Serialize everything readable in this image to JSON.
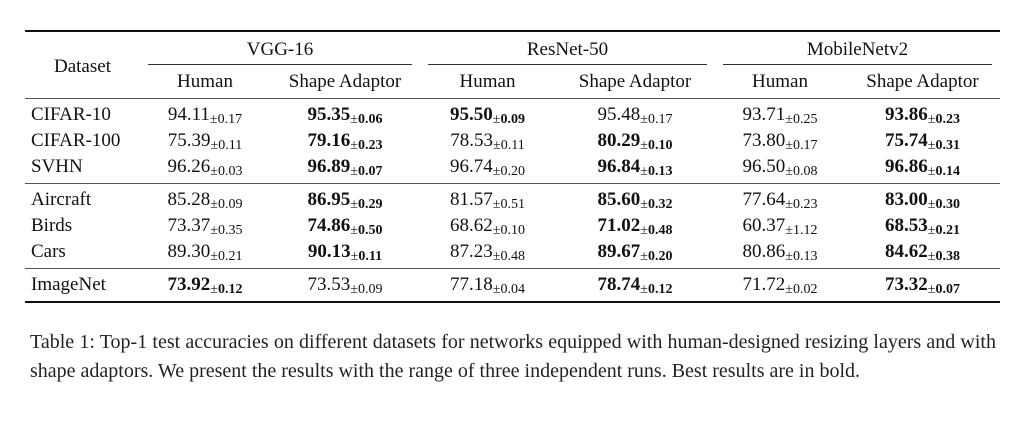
{
  "table": {
    "dataset_header": "Dataset",
    "groups": [
      "VGG-16",
      "ResNet-50",
      "MobileNetv2"
    ],
    "subheaders": [
      "Human",
      "Shape Adaptor",
      "Human",
      "Shape Adaptor",
      "Human",
      "Shape Adaptor"
    ],
    "pm_symbol": "±",
    "sections": [
      [
        {
          "dataset": "CIFAR-10",
          "cells": [
            {
              "v": "94.11",
              "pm": "0.17",
              "bold": false
            },
            {
              "v": "95.35",
              "pm": "0.06",
              "bold": true
            },
            {
              "v": "95.50",
              "pm": "0.09",
              "bold": true
            },
            {
              "v": "95.48",
              "pm": "0.17",
              "bold": false
            },
            {
              "v": "93.71",
              "pm": "0.25",
              "bold": false
            },
            {
              "v": "93.86",
              "pm": "0.23",
              "bold": true
            }
          ]
        },
        {
          "dataset": "CIFAR-100",
          "cells": [
            {
              "v": "75.39",
              "pm": "0.11",
              "bold": false
            },
            {
              "v": "79.16",
              "pm": "0.23",
              "bold": true
            },
            {
              "v": "78.53",
              "pm": "0.11",
              "bold": false
            },
            {
              "v": "80.29",
              "pm": "0.10",
              "bold": true
            },
            {
              "v": "73.80",
              "pm": "0.17",
              "bold": false
            },
            {
              "v": "75.74",
              "pm": "0.31",
              "bold": true
            }
          ]
        },
        {
          "dataset": "SVHN",
          "cells": [
            {
              "v": "96.26",
              "pm": "0.03",
              "bold": false
            },
            {
              "v": "96.89",
              "pm": "0.07",
              "bold": true
            },
            {
              "v": "96.74",
              "pm": "0.20",
              "bold": false
            },
            {
              "v": "96.84",
              "pm": "0.13",
              "bold": true
            },
            {
              "v": "96.50",
              "pm": "0.08",
              "bold": false
            },
            {
              "v": "96.86",
              "pm": "0.14",
              "bold": true
            }
          ]
        }
      ],
      [
        {
          "dataset": "Aircraft",
          "cells": [
            {
              "v": "85.28",
              "pm": "0.09",
              "bold": false
            },
            {
              "v": "86.95",
              "pm": "0.29",
              "bold": true
            },
            {
              "v": "81.57",
              "pm": "0.51",
              "bold": false
            },
            {
              "v": "85.60",
              "pm": "0.32",
              "bold": true
            },
            {
              "v": "77.64",
              "pm": "0.23",
              "bold": false
            },
            {
              "v": "83.00",
              "pm": "0.30",
              "bold": true
            }
          ]
        },
        {
          "dataset": "Birds",
          "cells": [
            {
              "v": "73.37",
              "pm": "0.35",
              "bold": false
            },
            {
              "v": "74.86",
              "pm": "0.50",
              "bold": true
            },
            {
              "v": "68.62",
              "pm": "0.10",
              "bold": false
            },
            {
              "v": "71.02",
              "pm": "0.48",
              "bold": true
            },
            {
              "v": "60.37",
              "pm": "1.12",
              "bold": false
            },
            {
              "v": "68.53",
              "pm": "0.21",
              "bold": true
            }
          ]
        },
        {
          "dataset": "Cars",
          "cells": [
            {
              "v": "89.30",
              "pm": "0.21",
              "bold": false
            },
            {
              "v": "90.13",
              "pm": "0.11",
              "bold": true
            },
            {
              "v": "87.23",
              "pm": "0.48",
              "bold": false
            },
            {
              "v": "89.67",
              "pm": "0.20",
              "bold": true
            },
            {
              "v": "80.86",
              "pm": "0.13",
              "bold": false
            },
            {
              "v": "84.62",
              "pm": "0.38",
              "bold": true
            }
          ]
        }
      ],
      [
        {
          "dataset": "ImageNet",
          "cells": [
            {
              "v": "73.92",
              "pm": "0.12",
              "bold": true
            },
            {
              "v": "73.53",
              "pm": "0.09",
              "bold": false
            },
            {
              "v": "77.18",
              "pm": "0.04",
              "bold": false
            },
            {
              "v": "78.74",
              "pm": "0.12",
              "bold": true
            },
            {
              "v": "71.72",
              "pm": "0.02",
              "bold": false
            },
            {
              "v": "73.32",
              "pm": "0.07",
              "bold": true
            }
          ]
        }
      ]
    ]
  },
  "caption": "Table 1: Top-1 test accuracies on different datasets for networks equipped with human-designed resizing layers and with shape adaptors. We present the results with the range of three independent runs. Best results are in bold."
}
